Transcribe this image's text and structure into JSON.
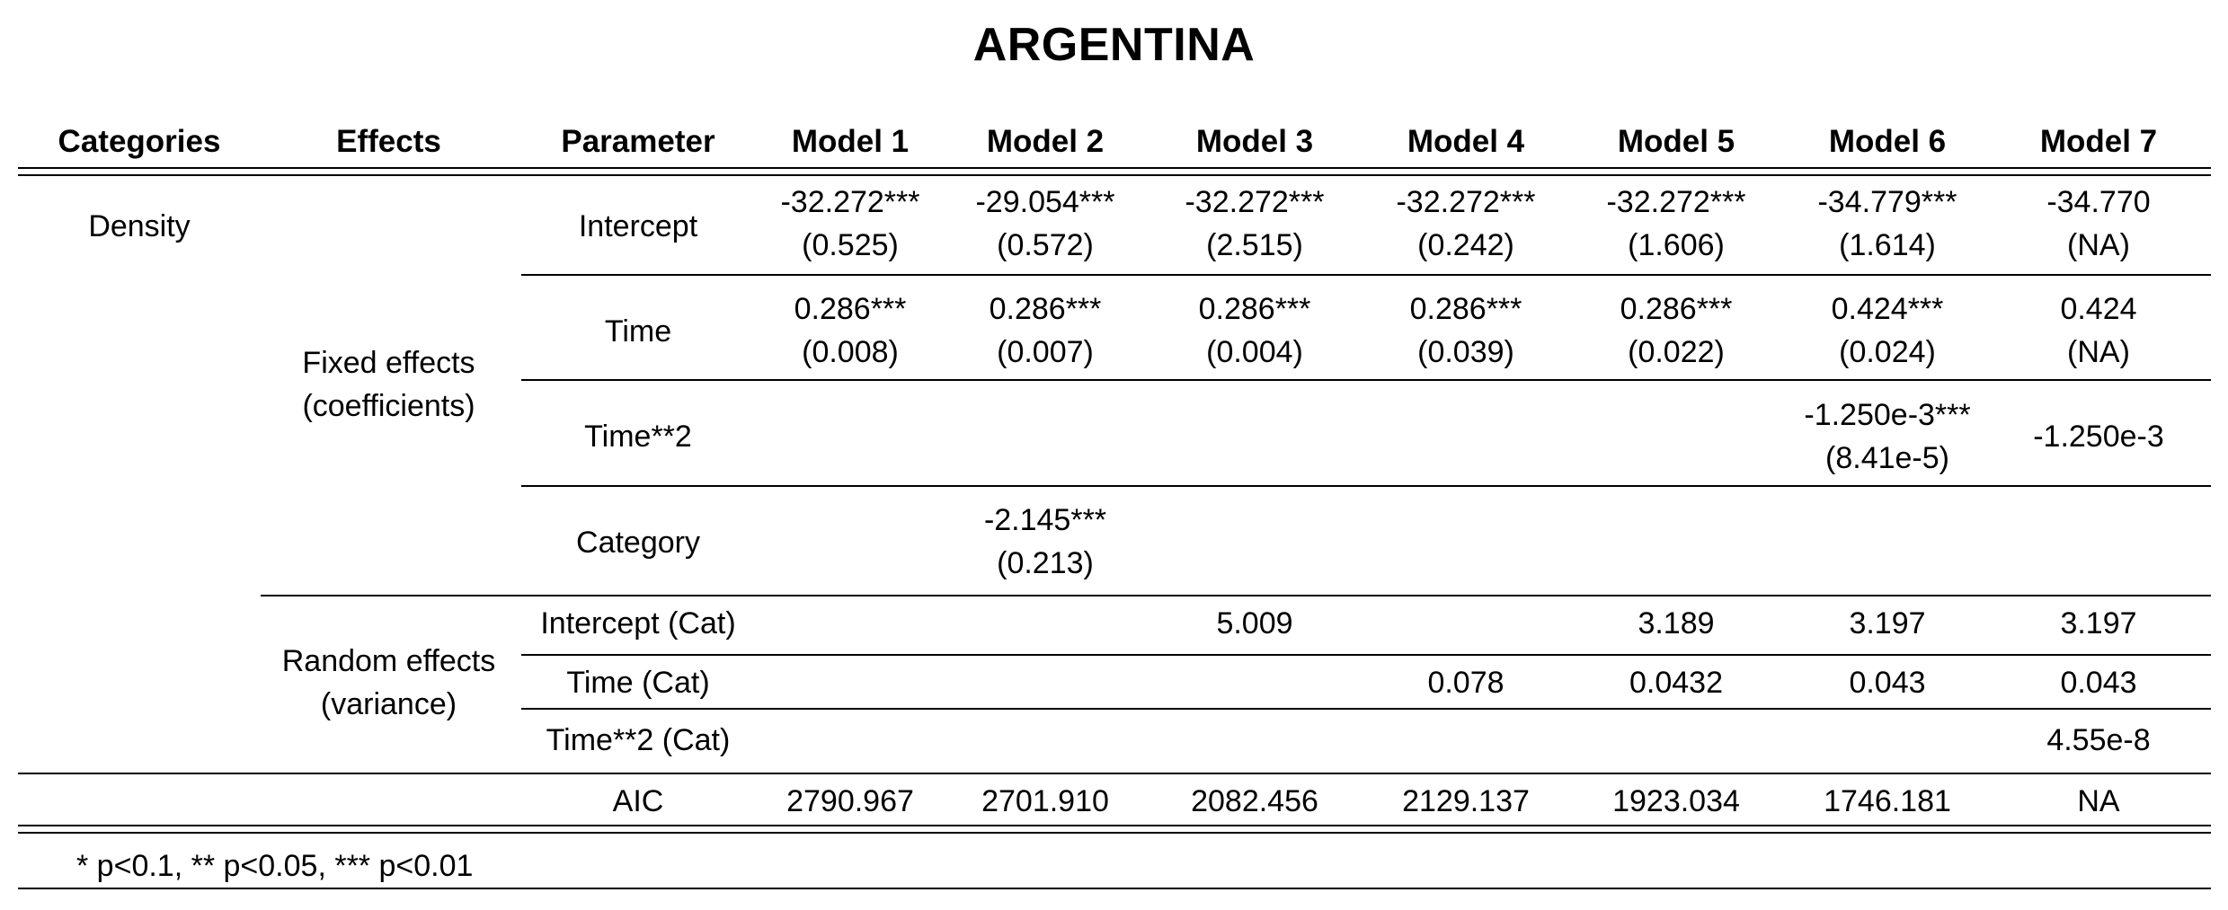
{
  "title": "ARGENTINA",
  "headers": {
    "categories": "Categories",
    "effects": "Effects",
    "parameter": "Parameter",
    "models": [
      "Model 1",
      "Model 2",
      "Model 3",
      "Model 4",
      "Model 5",
      "Model 6",
      "Model 7"
    ]
  },
  "category": "Density",
  "effects": {
    "fixed_line1": "Fixed effects",
    "fixed_line2": "(coefficients)",
    "random_line1": "Random effects",
    "random_line2": "(variance)"
  },
  "rows": [
    {
      "parameter": "Intercept",
      "values": [
        {
          "est": "-32.272***",
          "se": "(0.525)"
        },
        {
          "est": "-29.054***",
          "se": "(0.572)"
        },
        {
          "est": "-32.272***",
          "se": "(2.515)"
        },
        {
          "est": "-32.272***",
          "se": "(0.242)"
        },
        {
          "est": "-32.272***",
          "se": "(1.606)"
        },
        {
          "est": "-34.779***",
          "se": "(1.614)"
        },
        {
          "est": "-34.770",
          "se": "(NA)"
        }
      ]
    },
    {
      "parameter": "Time",
      "values": [
        {
          "est": "0.286***",
          "se": "(0.008)"
        },
        {
          "est": "0.286***",
          "se": "(0.007)"
        },
        {
          "est": "0.286***",
          "se": "(0.004)"
        },
        {
          "est": "0.286***",
          "se": "(0.039)"
        },
        {
          "est": "0.286***",
          "se": "(0.022)"
        },
        {
          "est": "0.424***",
          "se": "(0.024)"
        },
        {
          "est": "0.424",
          "se": "(NA)"
        }
      ]
    },
    {
      "parameter": "Time**2",
      "values": [
        {
          "est": "",
          "se": ""
        },
        {
          "est": "",
          "se": ""
        },
        {
          "est": "",
          "se": ""
        },
        {
          "est": "",
          "se": ""
        },
        {
          "est": "",
          "se": ""
        },
        {
          "est": "-1.250e-3***",
          "se": "(8.41e-5)"
        },
        {
          "est": "-1.250e-3",
          "se": ""
        }
      ]
    },
    {
      "parameter": "Category",
      "values": [
        {
          "est": "",
          "se": ""
        },
        {
          "est": "-2.145***",
          "se": "(0.213)"
        },
        {
          "est": "",
          "se": ""
        },
        {
          "est": "",
          "se": ""
        },
        {
          "est": "",
          "se": ""
        },
        {
          "est": "",
          "se": ""
        },
        {
          "est": "",
          "se": ""
        }
      ]
    }
  ],
  "random_rows": [
    {
      "parameter": "Intercept (Cat)",
      "values": [
        "",
        "",
        "5.009",
        "",
        "3.189",
        "3.197",
        "3.197"
      ]
    },
    {
      "parameter": "Time (Cat)",
      "values": [
        "",
        "",
        "",
        "0.078",
        "0.0432",
        "0.043",
        "0.043"
      ]
    },
    {
      "parameter": "Time**2 (Cat)",
      "values": [
        "",
        "",
        "",
        "",
        "",
        "",
        "4.55e-8"
      ]
    }
  ],
  "aic": {
    "label": "AIC",
    "values": [
      "2790.967",
      "2701.910",
      "2082.456",
      "2129.137",
      "1923.034",
      "1746.181",
      "NA"
    ]
  },
  "note": "* p<0.1, ** p<0.05, *** p<0.01"
}
